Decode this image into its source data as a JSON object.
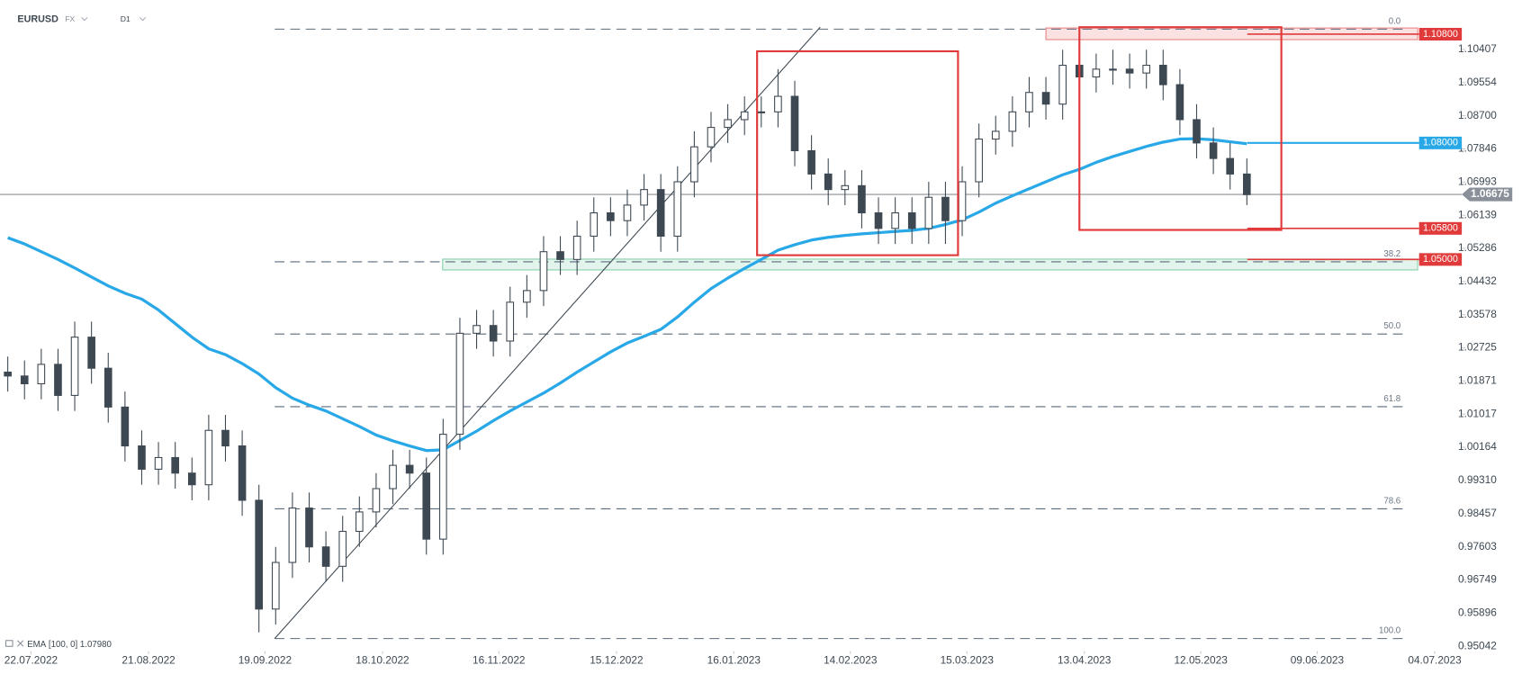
{
  "chart_data": {
    "type": "candlestick",
    "title": "EURUSD",
    "market": "FX",
    "timeframe": "D1",
    "colors": {
      "up": "#ffffff",
      "down": "#3d4852",
      "outline": "#3d4852"
    },
    "open": [
      1.021,
      1.02,
      1.018,
      1.023,
      1.015,
      1.03,
      1.022,
      1.012,
      1.002,
      0.996,
      0.999,
      0.995,
      0.992,
      1.006,
      1.002,
      0.988,
      0.96,
      0.972,
      0.986,
      0.976,
      0.971,
      0.98,
      0.985,
      0.991,
      0.997,
      0.995,
      0.978,
      1.005,
      1.031,
      1.033,
      1.029,
      1.039,
      1.042,
      1.052,
      1.05,
      1.056,
      1.062,
      1.06,
      1.064,
      1.068,
      1.056,
      1.07,
      1.079,
      1.084,
      1.086,
      1.088,
      1.088,
      1.092,
      1.078,
      1.072,
      1.068,
      1.069,
      1.062,
      1.058,
      1.062,
      1.058,
      1.066,
      1.06,
      1.07,
      1.081,
      1.083,
      1.088,
      1.093,
      1.09,
      1.1,
      1.097,
      1.099,
      1.099,
      1.098,
      1.1,
      1.095,
      1.086,
      1.08,
      1.076,
      1.072
    ],
    "high": [
      1.025,
      1.024,
      1.027,
      1.027,
      1.034,
      1.034,
      1.026,
      1.016,
      1.006,
      1.003,
      1.003,
      0.999,
      1.01,
      1.01,
      1.006,
      0.992,
      0.976,
      0.99,
      0.99,
      0.98,
      0.984,
      0.989,
      0.995,
      1.001,
      1.001,
      0.999,
      1.009,
      1.035,
      1.037,
      1.037,
      1.043,
      1.046,
      1.056,
      1.056,
      1.06,
      1.066,
      1.066,
      1.068,
      1.072,
      1.072,
      1.074,
      1.083,
      1.088,
      1.09,
      1.092,
      1.092,
      1.099,
      1.096,
      1.082,
      1.076,
      1.073,
      1.073,
      1.066,
      1.066,
      1.066,
      1.07,
      1.07,
      1.074,
      1.085,
      1.087,
      1.092,
      1.097,
      1.097,
      1.104,
      1.104,
      1.103,
      1.104,
      1.103,
      1.104,
      1.104,
      1.099,
      1.09,
      1.084,
      1.08,
      1.076
    ],
    "low": [
      1.016,
      1.014,
      1.014,
      1.011,
      1.011,
      1.018,
      1.008,
      0.998,
      0.992,
      0.992,
      0.991,
      0.988,
      0.988,
      0.998,
      0.984,
      0.954,
      0.956,
      0.968,
      0.972,
      0.967,
      0.967,
      0.976,
      0.981,
      0.987,
      0.991,
      0.974,
      0.974,
      1.001,
      1.027,
      1.025,
      1.025,
      1.035,
      1.038,
      1.046,
      1.046,
      1.052,
      1.056,
      1.056,
      1.06,
      1.052,
      1.052,
      1.066,
      1.075,
      1.08,
      1.082,
      1.084,
      1.084,
      1.074,
      1.068,
      1.064,
      1.064,
      1.058,
      1.054,
      1.054,
      1.054,
      1.054,
      1.054,
      1.056,
      1.066,
      1.077,
      1.079,
      1.084,
      1.086,
      1.086,
      1.093,
      1.093,
      1.095,
      1.094,
      1.094,
      1.091,
      1.082,
      1.076,
      1.072,
      1.068,
      1.064
    ],
    "close": [
      1.02,
      1.018,
      1.023,
      1.015,
      1.03,
      1.022,
      1.012,
      1.002,
      0.996,
      0.999,
      0.995,
      0.992,
      1.006,
      1.002,
      0.988,
      0.96,
      0.972,
      0.986,
      0.976,
      0.971,
      0.98,
      0.985,
      0.991,
      0.997,
      0.995,
      0.978,
      1.005,
      1.031,
      1.033,
      1.029,
      1.039,
      1.042,
      1.052,
      1.05,
      1.056,
      1.062,
      1.06,
      1.064,
      1.068,
      1.056,
      1.07,
      1.079,
      1.084,
      1.086,
      1.088,
      1.088,
      1.092,
      1.078,
      1.072,
      1.068,
      1.069,
      1.062,
      1.058,
      1.062,
      1.058,
      1.066,
      1.06,
      1.07,
      1.081,
      1.083,
      1.088,
      1.093,
      1.09,
      1.1,
      1.097,
      1.099,
      1.099,
      1.098,
      1.1,
      1.095,
      1.086,
      1.08,
      1.076,
      1.072,
      1.0667
    ],
    "ema": {
      "name": "EMA",
      "params": "[100, 0]",
      "last": {
        "value": 1.0798,
        "label": "1.07980"
      },
      "color": "#29a8e8",
      "values": [
        1.0556,
        1.054,
        1.052,
        1.05,
        1.0478,
        1.0455,
        1.0432,
        1.0413,
        1.0398,
        1.037,
        1.0335,
        1.03,
        1.027,
        1.0255,
        1.0232,
        1.0205,
        1.017,
        1.0143,
        1.0125,
        1.011,
        1.009,
        1.007,
        1.0048,
        1.0033,
        1.002,
        1.0008,
        1.001,
        1.0034,
        1.0058,
        1.0085,
        1.011,
        1.0133,
        1.0156,
        1.0182,
        1.021,
        1.0236,
        1.0262,
        1.0285,
        1.0302,
        1.032,
        1.0352,
        1.039,
        1.0425,
        1.0452,
        1.0477,
        1.05,
        1.0524,
        1.0538,
        1.055,
        1.0557,
        1.0562,
        1.0566,
        1.0569,
        1.0572,
        1.0575,
        1.058,
        1.059,
        1.0602,
        1.0622,
        1.0645,
        1.0664,
        1.0682,
        1.07,
        1.0718,
        1.0732,
        1.075,
        1.0765,
        1.0778,
        1.0791,
        1.0802,
        1.081,
        1.0811,
        1.0808,
        1.0803,
        1.0798
      ]
    },
    "xlim": [
      -0.464,
      86.49
    ],
    "xticks": [
      {
        "value": 1.39,
        "label": "22.07.2022"
      },
      {
        "value": 8.41,
        "label": "21.08.2022"
      },
      {
        "value": 15.36,
        "label": "19.09.2022"
      },
      {
        "value": 22.38,
        "label": "18.10.2022"
      },
      {
        "value": 29.33,
        "label": "16.11.2022"
      },
      {
        "value": 36.35,
        "label": "15.12.2022"
      },
      {
        "value": 43.36,
        "label": "16.01.2023"
      },
      {
        "value": 50.32,
        "label": "14.02.2023"
      },
      {
        "value": 57.28,
        "label": "15.03.2023"
      },
      {
        "value": 64.29,
        "label": "13.04.2023"
      },
      {
        "value": 71.25,
        "label": "12.05.2023"
      },
      {
        "value": 78.2,
        "label": "09.06.2023"
      },
      {
        "value": 85.22,
        "label": "04.07.2023"
      }
    ],
    "ylim": [
      0.9494,
      1.1168
    ],
    "yticks": [
      1.10407,
      1.09554,
      {
        "value": 1.087,
        "label": "1.08700"
      },
      1.07846,
      1.06993,
      1.06139,
      1.05286,
      1.04432,
      1.03578,
      1.02725,
      1.01871,
      1.01017,
      1.00164,
      {
        "value": 0.9931,
        "label": "0.99310"
      },
      0.98457,
      0.97603,
      0.96749,
      0.95896,
      0.95042
    ],
    "fibonacci": [
      {
        "value": 1.1093,
        "label": "0.0"
      },
      {
        "value": 1.0494,
        "label": "38.2"
      },
      {
        "value": 1.0308,
        "label": "50.0"
      },
      {
        "value": 1.0121,
        "label": "61.8"
      },
      {
        "value": 0.9858,
        "label": "78.6"
      },
      {
        "value": 0.9524,
        "label": "100.0"
      }
    ],
    "levels": [
      {
        "value": 1.108,
        "label": "1.10800",
        "color": "#e03a3a"
      },
      {
        "value": 1.08,
        "label": "1.08000",
        "color": "#29a8e8"
      },
      {
        "value": 1.058,
        "label": "1.05800",
        "color": "#e03a3a"
      },
      {
        "value": 1.05,
        "label": "1.05000",
        "color": "#e03a3a"
      }
    ],
    "current_price": {
      "value": 1.06675,
      "label": "1.06675",
      "color": "#8a9099"
    },
    "trendline": {
      "x": [
        15.94,
        48.52
      ],
      "y": [
        0.9524,
        1.1098
      ]
    },
    "boxes": [
      {
        "x": [
          44.75,
          56.75
        ],
        "y": [
          1.0511,
          1.1036
        ],
        "color": "#e03a3a"
      },
      {
        "x": [
          64.0,
          76.06
        ],
        "y": [
          1.0576,
          1.1098
        ],
        "color": "#e03a3a"
      }
    ],
    "zones": [
      {
        "x": [
          62.0,
          84.2
        ],
        "y": [
          1.1066,
          1.1096
        ],
        "color": "#e03a3a"
      },
      {
        "x": [
          25.97,
          84.2
        ],
        "y": [
          1.0473,
          1.0501
        ],
        "color": "#3cb878"
      }
    ]
  }
}
